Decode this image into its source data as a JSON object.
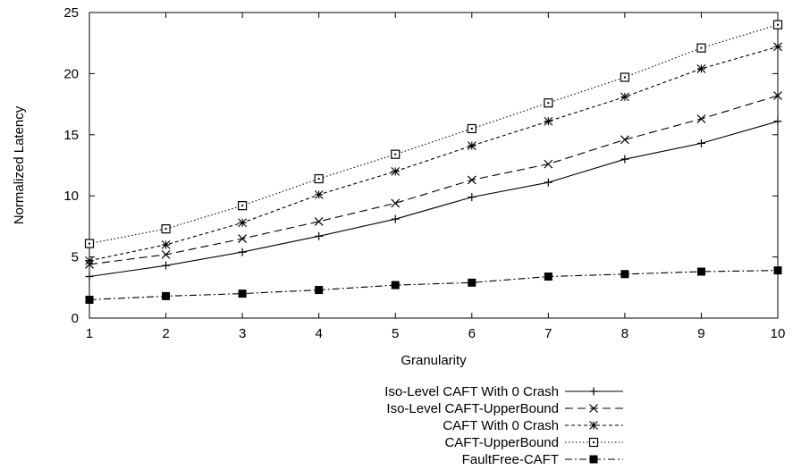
{
  "chart_data": {
    "type": "line",
    "xlabel": "Granularity",
    "ylabel": "Normalized Latency",
    "x": [
      1,
      2,
      3,
      4,
      5,
      6,
      7,
      8,
      9,
      10
    ],
    "xlim": [
      1,
      10
    ],
    "ylim": [
      0,
      25
    ],
    "xticks": [
      "1",
      "2",
      "3",
      "4",
      "5",
      "6",
      "7",
      "8",
      "9",
      "10"
    ],
    "yticks": [
      "0",
      "5",
      "10",
      "15",
      "20",
      "25"
    ],
    "grid": false,
    "legend_position": "bottom-center",
    "series": [
      {
        "name": "Iso-Level CAFT With 0 Crash",
        "marker": "plus",
        "dash": "solid",
        "values": [
          3.4,
          4.3,
          5.4,
          6.7,
          8.1,
          9.9,
          11.1,
          13.0,
          14.3,
          16.1
        ]
      },
      {
        "name": "Iso-Level CAFT-UpperBound",
        "marker": "cross",
        "dash": "dashed",
        "values": [
          4.4,
          5.2,
          6.5,
          7.9,
          9.4,
          11.3,
          12.6,
          14.6,
          16.3,
          18.2
        ]
      },
      {
        "name": "CAFT With 0 Crash",
        "marker": "asterisk",
        "dash": "short-dash",
        "values": [
          4.7,
          6.0,
          7.8,
          10.1,
          12.0,
          14.1,
          16.1,
          18.1,
          20.4,
          22.2
        ]
      },
      {
        "name": "CAFT-UpperBound",
        "marker": "open-square",
        "dash": "dotted",
        "values": [
          6.1,
          7.3,
          9.2,
          11.4,
          13.4,
          15.5,
          17.6,
          19.7,
          22.1,
          24.0
        ]
      },
      {
        "name": "FaultFree-CAFT",
        "marker": "filled-square",
        "dash": "dash-dot",
        "values": [
          1.5,
          1.8,
          2.0,
          2.3,
          2.7,
          2.9,
          3.4,
          3.6,
          3.8,
          3.9
        ]
      }
    ]
  }
}
